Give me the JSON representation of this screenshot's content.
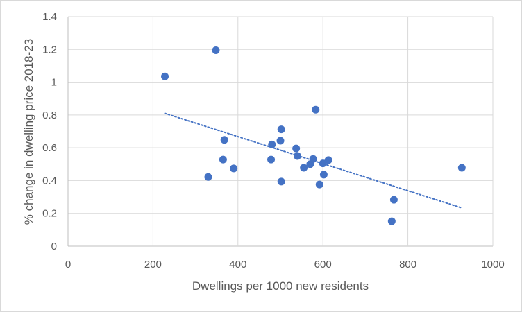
{
  "chart_data": {
    "type": "scatter",
    "title": "",
    "xlabel": "Dwellings per 1000 new residents",
    "ylabel": "% change in dwelling price 2018-23",
    "xlim": [
      0,
      1000
    ],
    "ylim": [
      0,
      1.4
    ],
    "x_ticks": [
      "0",
      "200",
      "400",
      "600",
      "800",
      "1000"
    ],
    "y_ticks": [
      "0",
      "0.2",
      "0.4",
      "0.6",
      "0.8",
      "1",
      "1.2",
      "1.4"
    ],
    "x_tick_values": [
      0,
      200,
      400,
      600,
      800,
      1000
    ],
    "y_tick_values": [
      0,
      0.2,
      0.4,
      0.6,
      0.8,
      1.0,
      1.2,
      1.4
    ],
    "grid": true,
    "legend": "none",
    "marker_color": "#4472C4",
    "trendline": {
      "type": "linear",
      "style": "dotted",
      "color": "#4472C4",
      "x": [
        228,
        925
      ],
      "y": [
        0.81,
        0.235
      ]
    },
    "series": [
      {
        "points": [
          {
            "x": 228,
            "y": 1.035
          },
          {
            "x": 348,
            "y": 1.195
          },
          {
            "x": 330,
            "y": 0.422
          },
          {
            "x": 365,
            "y": 0.528
          },
          {
            "x": 368,
            "y": 0.648
          },
          {
            "x": 390,
            "y": 0.474
          },
          {
            "x": 478,
            "y": 0.528
          },
          {
            "x": 480,
            "y": 0.62
          },
          {
            "x": 500,
            "y": 0.643
          },
          {
            "x": 502,
            "y": 0.712
          },
          {
            "x": 502,
            "y": 0.394
          },
          {
            "x": 537,
            "y": 0.596
          },
          {
            "x": 540,
            "y": 0.55
          },
          {
            "x": 555,
            "y": 0.478
          },
          {
            "x": 570,
            "y": 0.5
          },
          {
            "x": 577,
            "y": 0.532
          },
          {
            "x": 583,
            "y": 0.832
          },
          {
            "x": 592,
            "y": 0.376
          },
          {
            "x": 600,
            "y": 0.505
          },
          {
            "x": 602,
            "y": 0.436
          },
          {
            "x": 613,
            "y": 0.525
          },
          {
            "x": 762,
            "y": 0.152
          },
          {
            "x": 767,
            "y": 0.283
          },
          {
            "x": 927,
            "y": 0.478
          }
        ]
      }
    ]
  }
}
